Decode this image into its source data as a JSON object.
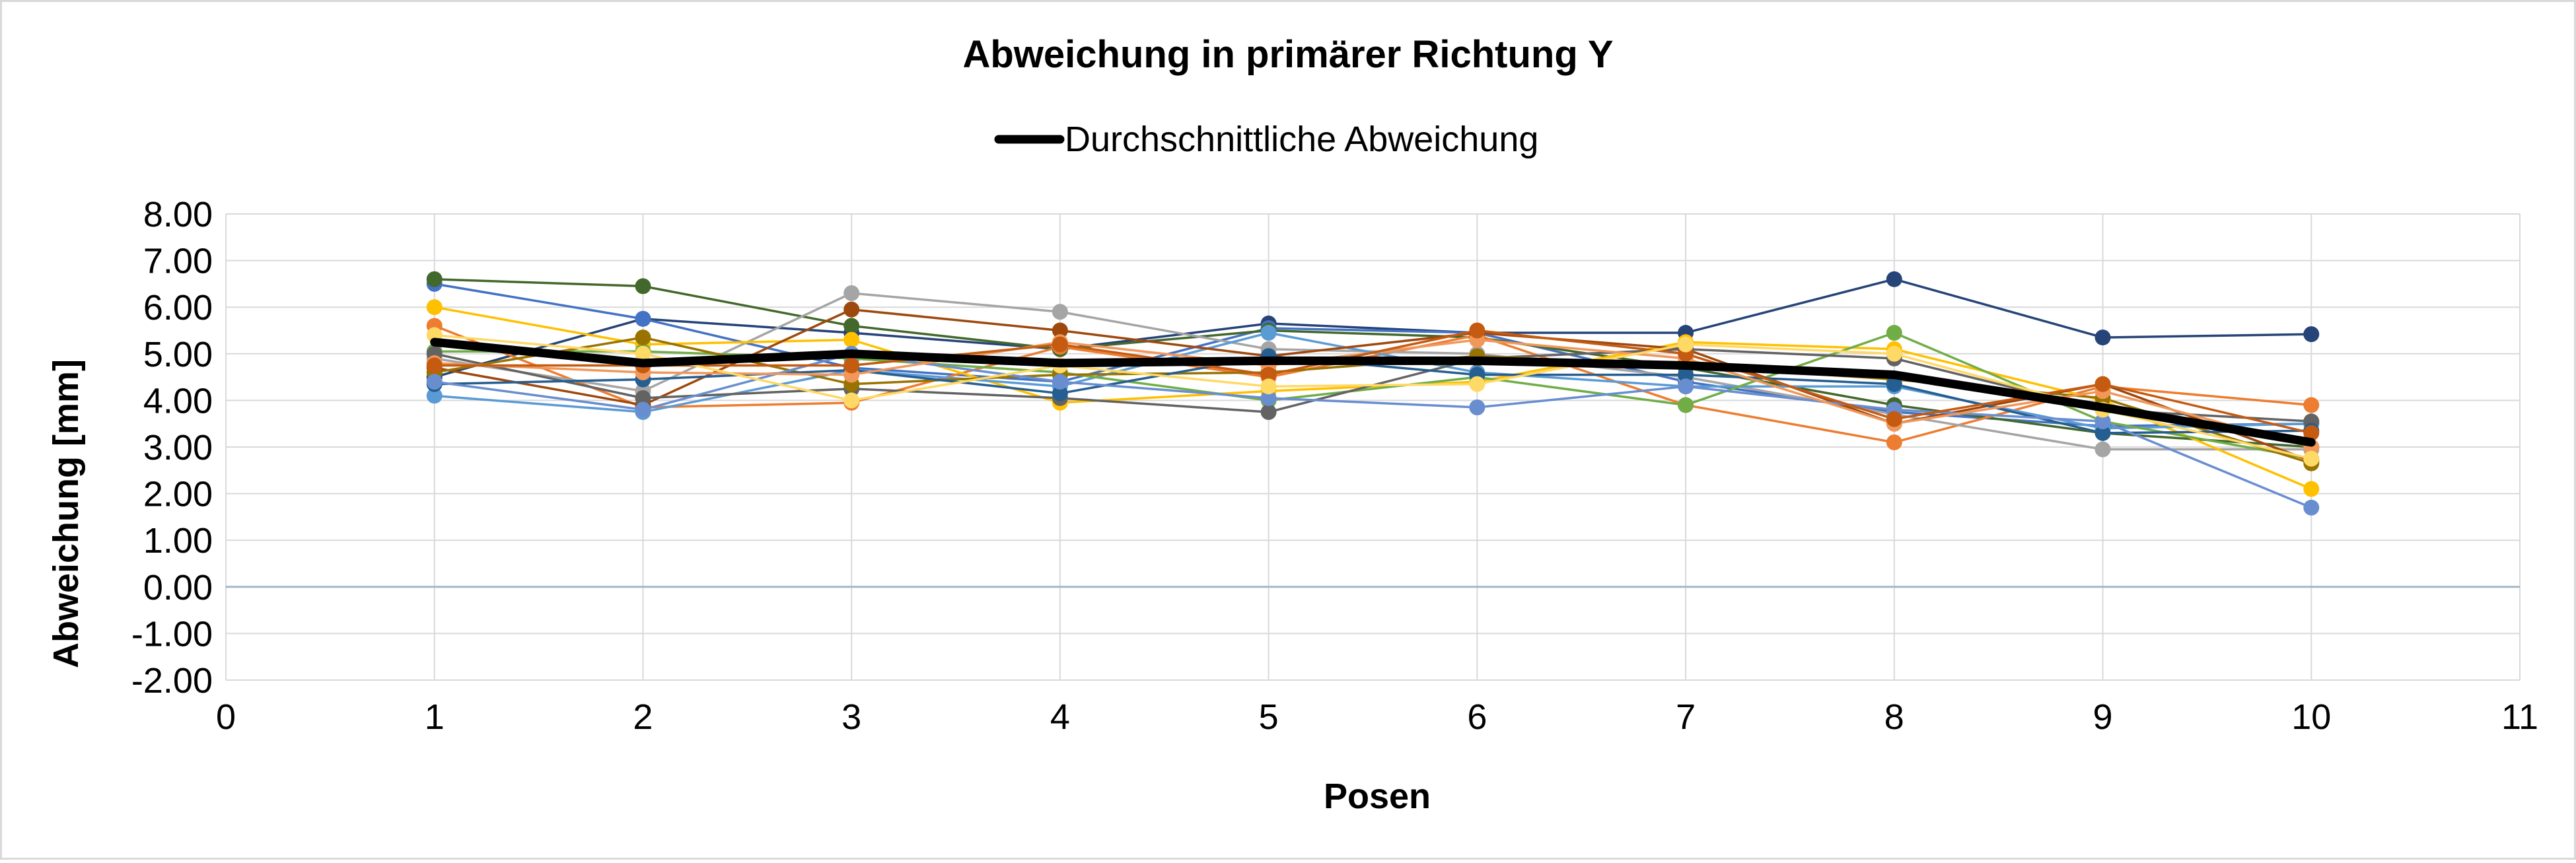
{
  "chart_data": {
    "type": "line",
    "title": "Abweichung in primärer Richtung Y",
    "xlabel": "Posen",
    "ylabel": "Abweichung [mm]",
    "xlim": [
      0,
      11
    ],
    "ylim": [
      -2,
      8
    ],
    "x_ticks": [
      0,
      1,
      2,
      3,
      4,
      5,
      6,
      7,
      8,
      9,
      10,
      11
    ],
    "y_ticks": [
      -2,
      -1,
      0,
      1,
      2,
      3,
      4,
      5,
      6,
      7,
      8
    ],
    "y_tick_labels": [
      "-2.00",
      "-1.00",
      "0.00",
      "1.00",
      "2.00",
      "3.00",
      "4.00",
      "5.00",
      "6.00",
      "7.00",
      "8.00"
    ],
    "x_tick_labels": [
      "0",
      "1",
      "2",
      "3",
      "4",
      "5",
      "6",
      "7",
      "8",
      "9",
      "10",
      "11"
    ],
    "grid": true,
    "legend": {
      "placement": "top-center",
      "entries": [
        "Durchschnittliche Abweichung"
      ]
    },
    "x": [
      1,
      2,
      3,
      4,
      5,
      6,
      7,
      8,
      9,
      10
    ],
    "series": [
      {
        "color": "#264478",
        "values": [
          4.5,
          5.75,
          5.45,
          5.1,
          5.65,
          5.45,
          5.45,
          6.6,
          5.35,
          5.42
        ]
      },
      {
        "color": "#4472c4",
        "values": [
          6.5,
          5.75,
          4.7,
          4.4,
          5.55,
          5.45,
          4.4,
          3.75,
          3.45,
          3.5
        ]
      },
      {
        "color": "#43682b",
        "values": [
          6.6,
          6.45,
          5.6,
          5.1,
          5.5,
          5.35,
          4.7,
          3.9,
          3.3,
          3.0
        ]
      },
      {
        "color": "#ed7d31",
        "values": [
          5.6,
          3.85,
          3.95,
          5.15,
          4.5,
          5.4,
          3.9,
          3.1,
          4.3,
          3.9
        ]
      },
      {
        "color": "#a5a5a5",
        "values": [
          4.9,
          4.2,
          6.3,
          5.9,
          5.1,
          5.0,
          4.5,
          3.7,
          2.95,
          2.95
        ]
      },
      {
        "color": "#ffc000",
        "values": [
          6.0,
          5.2,
          5.3,
          3.95,
          4.2,
          4.4,
          5.25,
          5.1,
          4.0,
          2.1
        ]
      },
      {
        "color": "#5b9bd5",
        "values": [
          4.1,
          3.75,
          4.65,
          4.3,
          5.45,
          4.6,
          4.3,
          4.3,
          3.4,
          3.5
        ]
      },
      {
        "color": "#70ad47",
        "values": [
          5.05,
          5.05,
          4.9,
          4.6,
          4.0,
          4.5,
          3.9,
          5.45,
          3.55,
          2.75
        ]
      },
      {
        "color": "#9e480e",
        "values": [
          4.7,
          3.9,
          5.95,
          5.5,
          4.95,
          5.45,
          5.1,
          3.5,
          4.35,
          2.7
        ]
      },
      {
        "color": "#636363",
        "values": [
          5.0,
          4.05,
          4.25,
          4.05,
          3.75,
          4.9,
          5.1,
          4.9,
          3.8,
          3.55
        ]
      },
      {
        "color": "#997300",
        "values": [
          4.6,
          5.35,
          4.35,
          4.55,
          4.6,
          4.95,
          4.75,
          4.45,
          4.05,
          2.65
        ]
      },
      {
        "color": "#255e91",
        "values": [
          4.35,
          4.45,
          4.65,
          4.15,
          4.95,
          4.55,
          4.55,
          4.35,
          3.3,
          3.35
        ]
      },
      {
        "color": "#698ed0",
        "values": [
          4.4,
          3.8,
          5.0,
          4.4,
          4.05,
          3.85,
          4.3,
          3.8,
          3.55,
          1.7
        ]
      },
      {
        "color": "#f1975a",
        "values": [
          4.8,
          4.6,
          4.55,
          5.25,
          4.75,
          5.3,
          4.9,
          3.5,
          4.2,
          3.0
        ]
      },
      {
        "color": "#c55a11",
        "values": [
          4.75,
          4.75,
          4.75,
          5.2,
          4.55,
          5.5,
          5.0,
          3.6,
          4.35,
          3.3
        ]
      },
      {
        "color": "#ffd966",
        "values": [
          5.4,
          5.0,
          4.0,
          4.75,
          4.3,
          4.35,
          5.2,
          5.0,
          3.8,
          2.75
        ]
      }
    ],
    "average_series": {
      "name": "Durchschnittliche Abweichung",
      "color": "#000000",
      "values": [
        5.25,
        4.8,
        5.0,
        4.8,
        4.85,
        4.85,
        4.75,
        4.55,
        3.85,
        3.1
      ]
    }
  }
}
